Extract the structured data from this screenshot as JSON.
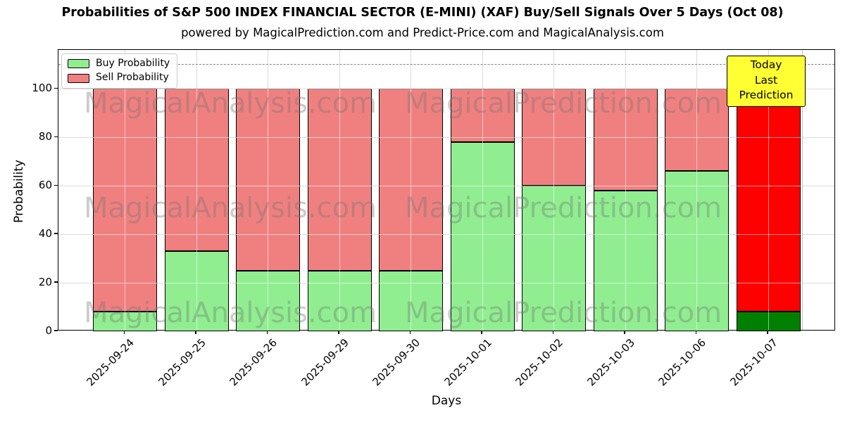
{
  "header": {
    "title": "Probabilities of S&P 500 INDEX FINANCIAL SECTOR (E-MINI) (XAF) Buy/Sell Signals Over 5 Days (Oct 08)",
    "subtitle": "powered by MagicalPrediction.com and Predict-Price.com and MagicalAnalysis.com"
  },
  "chart_data": {
    "type": "bar",
    "stacked": true,
    "categories": [
      "2025-09-24",
      "2025-09-25",
      "2025-09-26",
      "2025-09-29",
      "2025-09-30",
      "2025-10-01",
      "2025-10-02",
      "2025-10-03",
      "2025-10-06",
      "2025-10-07"
    ],
    "series": [
      {
        "name": "Buy Probability",
        "values": [
          8,
          33,
          25,
          25,
          25,
          78,
          60,
          58,
          66,
          8
        ],
        "color": "#90EE90",
        "today_color": "#008000"
      },
      {
        "name": "Sell Probability",
        "values": [
          92,
          67,
          75,
          75,
          75,
          22,
          40,
          42,
          34,
          92
        ],
        "color": "#F08080",
        "today_color": "#FF0000"
      }
    ],
    "bar_total": 100,
    "today_index": 9,
    "title": "Probabilities of S&P 500 INDEX FINANCIAL SECTOR (E-MINI) (XAF) Buy/Sell Signals Over 5 Days (Oct 08)",
    "xlabel": "Days",
    "ylabel": "Probability",
    "ylim": [
      0,
      116
    ],
    "yticks": [
      0,
      20,
      40,
      60,
      80,
      100
    ],
    "grid": true,
    "gridline_color": "#b0b0b0",
    "legend_position": "upper left",
    "dashed_line_y": 110,
    "dashed_line_color": "#808080",
    "bar_edge_color": "#000000"
  },
  "annotation": {
    "line1": "Today",
    "line2": "Last Prediction",
    "bg_color": "#ffff33"
  },
  "watermarks": {
    "left_text": "MagicalAnalysis.com",
    "right_text": "MagicalPrediction.com"
  }
}
